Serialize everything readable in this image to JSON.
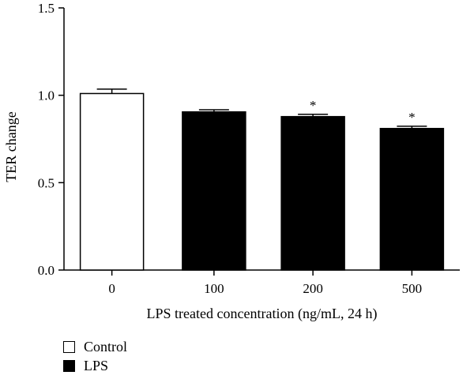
{
  "chart_data": {
    "type": "bar",
    "categories": [
      "0",
      "100",
      "200",
      "500"
    ],
    "values": [
      1.01,
      0.905,
      0.878,
      0.81
    ],
    "errors": [
      0.025,
      0.012,
      0.013,
      0.013
    ],
    "groups": [
      "Control",
      "LPS",
      "LPS",
      "LPS"
    ],
    "significance": [
      "",
      "",
      "*",
      "*"
    ],
    "xlabel": "LPS treated concentration (ng/mL, 24 h)",
    "ylabel": "TER change",
    "ylim": [
      0,
      1.5
    ],
    "yticks": [
      "0.0",
      "0.5",
      "1.0",
      "1.5"
    ],
    "grid": false,
    "legend_position": "bottom-left",
    "legend": [
      {
        "label": "Control",
        "color": "#ffffff"
      },
      {
        "label": "LPS",
        "color": "#000000"
      }
    ]
  }
}
